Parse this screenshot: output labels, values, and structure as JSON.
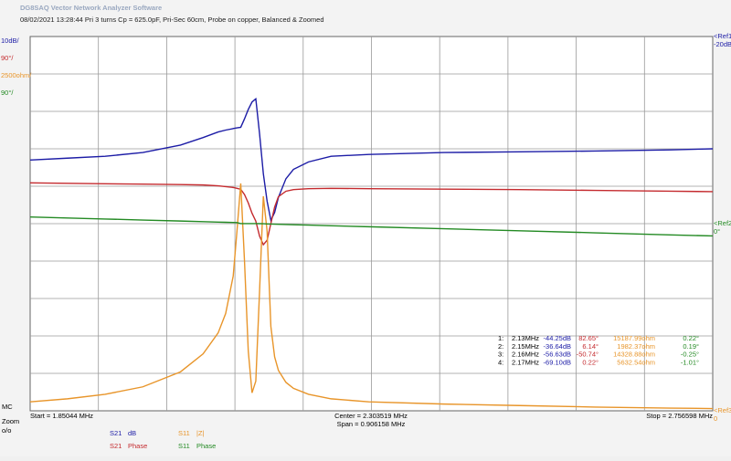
{
  "app_title": "DG8SAQ Vector Network Analyzer Software",
  "subtitle": "08/02/2021   13:28:44    Pri 3 turns Cp = 625.0pF, Pri-Sec 60cm, Probe on copper, Balanced & Zoomed",
  "side_labels": [
    "MC",
    "Zoom",
    "o/o"
  ],
  "chart_data": {
    "type": "line",
    "divisions": 10,
    "start_label": "Start = 1.85044 MHz",
    "center_label": "Center = 2.303519 MHz",
    "span_label": "Span = 0.906158 MHz",
    "stop_label": "Stop = 2.756598 MHz",
    "xlim": [
      1.85044,
      2.756598
    ],
    "x": [
      1.85044,
      1.9,
      1.95,
      2.0,
      2.05,
      2.08,
      2.1,
      2.11,
      2.12,
      2.125,
      2.13,
      2.135,
      2.14,
      2.145,
      2.15,
      2.155,
      2.16,
      2.165,
      2.17,
      2.175,
      2.18,
      2.19,
      2.2,
      2.22,
      2.25,
      2.3,
      2.4,
      2.5,
      2.6,
      2.7,
      2.756598
    ],
    "series": [
      {
        "name": "S21",
        "unit": "dB",
        "scale_label": "10dB/",
        "color": "#1c1ca6",
        "ylim": [
          -120,
          -20
        ],
        "values": [
          -53,
          -52.5,
          -52,
          -51,
          -49,
          -47,
          -45.5,
          -45,
          -44.6,
          -44.4,
          -44.25,
          -42,
          -39.5,
          -37.5,
          -36.64,
          -46,
          -56.63,
          -64,
          -69.1,
          -67,
          -63,
          -58,
          -55.5,
          -53.5,
          -52,
          -51.5,
          -51,
          -50.8,
          -50.6,
          -50.3,
          -50
        ]
      },
      {
        "name": "S21",
        "unit": "Phase",
        "scale_label": "90°/",
        "color": "#c42a2e",
        "ylim": [
          -450,
          450
        ],
        "values": [
          98,
          97,
          96,
          95,
          94,
          93,
          91,
          89,
          87,
          85,
          82.65,
          70,
          50,
          25,
          6.14,
          -30,
          -50.74,
          -40,
          0.22,
          40,
          65,
          78,
          82,
          84,
          85,
          84,
          83,
          82,
          80,
          78,
          77
        ]
      },
      {
        "name": "S11",
        "unit": "|Z|",
        "scale_label": "2500ohm/",
        "color": "#e8952a",
        "ylim": [
          0,
          25000
        ],
        "values": [
          600,
          800,
          1100,
          1600,
          2600,
          3800,
          5200,
          6500,
          9000,
          12000,
          15187.99,
          10000,
          4000,
          1200,
          1982.37,
          8000,
          14328.88,
          12000,
          5632.54,
          3600,
          2700,
          1900,
          1500,
          1100,
          800,
          600,
          450,
          350,
          250,
          180,
          150
        ]
      },
      {
        "name": "S11",
        "unit": "Phase",
        "scale_label": "90°/",
        "color": "#238a23",
        "ylim": [
          -450,
          450
        ],
        "values": [
          16,
          13.6,
          11.2,
          8.7,
          6.3,
          4.8,
          3.8,
          3.3,
          2.8,
          2.6,
          0.22,
          0.2,
          0.2,
          0.2,
          0.19,
          0,
          -0.25,
          -0.6,
          -1.01,
          -1.3,
          -1.5,
          -2,
          -2.5,
          -3.5,
          -5,
          -7.4,
          -12.3,
          -17.2,
          -22,
          -27,
          -29.5
        ]
      }
    ],
    "refs": [
      {
        "label": "<Ref1",
        "value": "-20dB",
        "series": 0
      },
      {
        "label": "<Ref2",
        "value": "0°",
        "series": 3
      },
      {
        "label": "<Ref3",
        "value": "0",
        "series": 2
      }
    ],
    "marker_table": [
      [
        "1:",
        "2.13MHz",
        "-44.25dB",
        "82.65°",
        "15187.99ohm",
        "0.22°"
      ],
      [
        "2:",
        "2.15MHz",
        "-36.64dB",
        "6.14°",
        "1982.37ohm",
        "0.19°"
      ],
      [
        "3:",
        "2.16MHz",
        "-56.63dB",
        "-50.74°",
        "14328.88ohm",
        "-0.25°"
      ],
      [
        "4:",
        "2.17MHz",
        "-69.10dB",
        "0.22°",
        "5632.54ohm",
        "-1.01°"
      ]
    ]
  }
}
